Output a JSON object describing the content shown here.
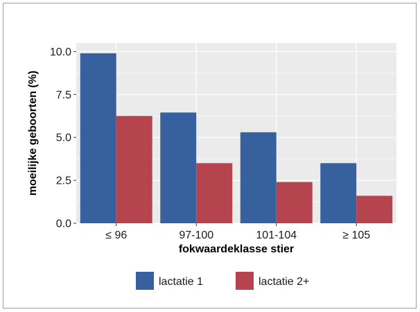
{
  "chart_data": {
    "type": "bar",
    "title": "",
    "xlabel": "fokwaardeklasse stier",
    "ylabel": "moeilijke geboorten (%)",
    "categories": [
      "≤ 96",
      "97-100",
      "101-104",
      "≥ 105"
    ],
    "series": [
      {
        "name": "lactatie 1",
        "values": [
          9.9,
          6.45,
          5.3,
          3.5
        ],
        "color": "#37609e"
      },
      {
        "name": "lactatie 2+",
        "values": [
          6.25,
          3.5,
          2.4,
          1.6
        ],
        "color": "#b5444f"
      }
    ],
    "ylim": [
      0,
      10.5
    ],
    "yticks": [
      0,
      2.5,
      5,
      7.5,
      10
    ],
    "ytick_labels": [
      "0.0",
      "2.5",
      "5.0",
      "7.5",
      "10.0"
    ],
    "grid": true,
    "panel_background": "#ebebeb",
    "legend_position": "bottom"
  }
}
